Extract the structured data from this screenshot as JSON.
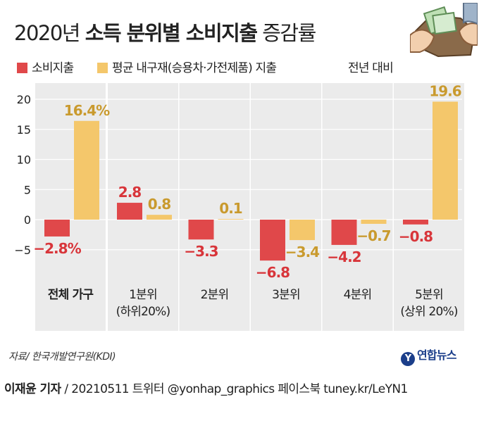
{
  "title": {
    "year": "2020년",
    "bold": "소득 분위별 소비지출",
    "suffix": "증감률"
  },
  "legend": [
    {
      "label": "소비지출",
      "color": "#e0484a"
    },
    {
      "label": "평균 내구재(승용차·가전제품) 지출",
      "color": "#f4c76b"
    }
  ],
  "note": "전년 대비",
  "source": "자료/ 한국개발연구원(KDI)",
  "logo": "연합뉴스",
  "credit": {
    "reporter": "이재윤 기자",
    "rest": "/ 20210511   트위터 @yonhap_graphics  페이스북 tuney.kr/LeYN1"
  },
  "chart_data": {
    "type": "bar",
    "categories": [
      "전체 가구",
      "1분위\n(하위20%)",
      "2분위",
      "3분위",
      "4분위",
      "5분위\n(상위 20%)"
    ],
    "series": [
      {
        "name": "소비지출",
        "values": [
          -2.8,
          2.8,
          -3.3,
          -6.8,
          -4.2,
          -0.8
        ],
        "labels": [
          "−2.8%",
          "2.8",
          "−3.3",
          "−6.8",
          "−4.2",
          "−0.8"
        ]
      },
      {
        "name": "평균 내구재(승용차·가전제품) 지출",
        "values": [
          16.4,
          0.8,
          0.1,
          -3.4,
          -0.7,
          19.6
        ],
        "labels": [
          "16.4%",
          "0.8",
          "0.1",
          "−3.4",
          "−0.7",
          "19.6"
        ]
      }
    ],
    "yticks": [
      -5,
      0,
      5,
      10,
      15,
      20
    ],
    "ytick_labels": [
      "−5",
      "0",
      "5",
      "10",
      "15",
      "20"
    ],
    "ylim": [
      -8.2,
      21
    ],
    "colors": {
      "spending": "#e0484a",
      "durables": "#f4c76b",
      "panel": "#ebebeb",
      "grid": "#ffffff",
      "spending_label": "#d8353a",
      "durables_label": "#c99a2e"
    }
  }
}
